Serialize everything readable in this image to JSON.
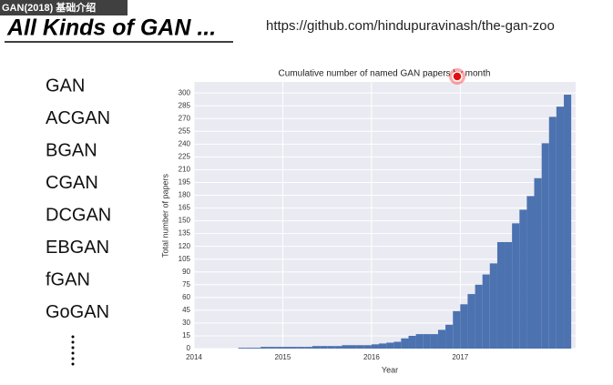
{
  "video_title": "GAN(2018) 基础介绍",
  "slide": {
    "title": "All Kinds of GAN ...",
    "url": "https://github.com/hindupuravinash/the-gan-zoo",
    "list": [
      "GAN",
      "ACGAN",
      "BGAN",
      "CGAN",
      "DCGAN",
      "EBGAN",
      "fGAN",
      "GoGAN"
    ]
  },
  "chart_data": {
    "type": "histogram",
    "title": "Cumulative number of named GAN papers by month",
    "xlabel": "Year",
    "ylabel": "Total number of papers",
    "color": "#4c72b0",
    "grid": true,
    "bins": [
      2014.5,
      2014.583,
      2014.667,
      2014.75,
      2014.833,
      2014.917,
      2015,
      2015.083,
      2015.167,
      2015.25,
      2015.333,
      2015.417,
      2015.5,
      2015.583,
      2015.667,
      2015.75,
      2015.833,
      2015.917,
      2016,
      2016.083,
      2016.167,
      2016.25,
      2016.333,
      2016.417,
      2016.5,
      2016.583,
      2016.667,
      2016.75,
      2016.833,
      2016.917,
      2017,
      2017.083,
      2017.167,
      2017.25,
      2017.333,
      2017.417,
      2017.5,
      2017.583,
      2017.667,
      2017.75,
      2017.833,
      2017.917,
      2018,
      2018.083,
      2018.167,
      2018.25
    ],
    "values": [
      1,
      1,
      1,
      2,
      2,
      2,
      2,
      2,
      2,
      2,
      3,
      3,
      3,
      3,
      4,
      4,
      4,
      4,
      5,
      6,
      7,
      8,
      12,
      15,
      17,
      17,
      17,
      22,
      28,
      44,
      52,
      64,
      75,
      87,
      100,
      125,
      125,
      147,
      163,
      179,
      200,
      241,
      272,
      284,
      298
    ],
    "xlim": [
      2014,
      2018.3
    ],
    "xticks": [
      2014,
      2015,
      2016,
      2017
    ],
    "ylim": [
      0,
      313
    ],
    "yticks": [
      0,
      15,
      30,
      45,
      60,
      75,
      90,
      105,
      120,
      135,
      150,
      165,
      180,
      195,
      210,
      225,
      240,
      255,
      270,
      285,
      300
    ]
  }
}
